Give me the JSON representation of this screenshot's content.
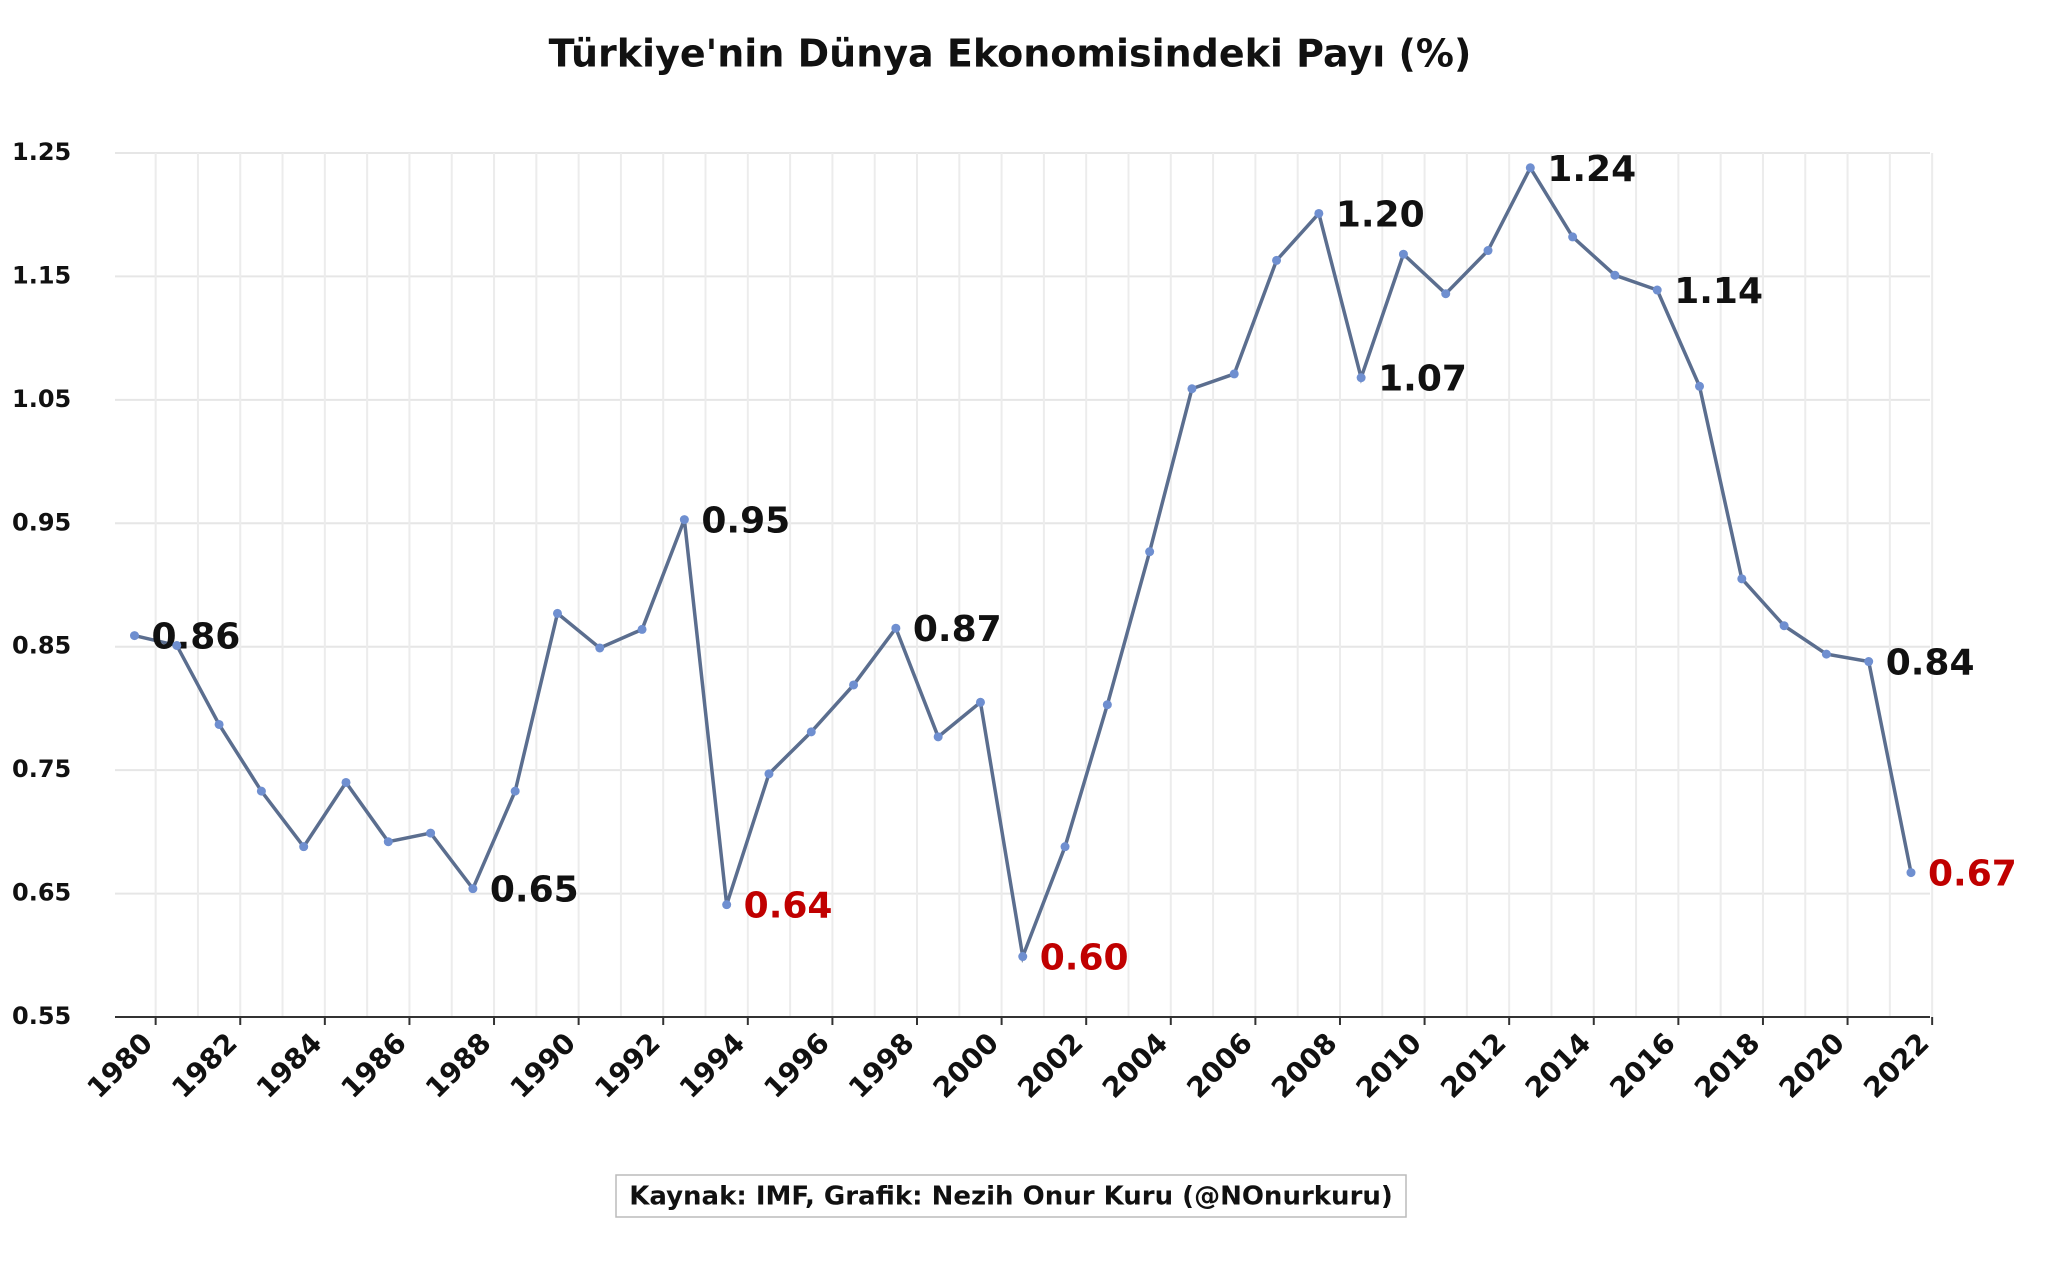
{
  "chart_data": {
    "type": "line",
    "title": "Türkiye'nin Dünya Ekonomisindeki Payı (%)",
    "source": "Kaynak: IMF, Grafik: Nezih Onur Kuru (@NOnurkuru)",
    "categories": [
      "1980",
      null,
      "1982",
      null,
      "1984",
      null,
      "1986",
      null,
      "1988",
      null,
      "1990",
      null,
      "1992",
      null,
      "1994",
      null,
      "1996",
      null,
      "1998",
      null,
      "2000",
      null,
      "2002",
      null,
      "2004",
      null,
      "2006",
      null,
      "2008",
      null,
      "2010",
      null,
      "2012",
      null,
      "2014",
      null,
      "2016",
      null,
      "2018",
      null,
      "2020",
      null,
      "2022"
    ],
    "values": [
      0.859,
      0.851,
      0.787,
      0.733,
      0.688,
      0.74,
      0.692,
      0.699,
      0.654,
      0.733,
      0.877,
      0.849,
      0.864,
      0.953,
      0.641,
      0.747,
      0.781,
      0.819,
      0.865,
      0.777,
      0.805,
      0.599,
      0.688,
      0.803,
      0.927,
      1.059,
      1.071,
      1.163,
      1.201,
      1.068,
      1.168,
      1.136,
      1.171,
      1.238,
      1.182,
      1.151,
      1.139,
      1.061,
      0.905,
      0.867,
      0.844,
      0.838,
      0.667
    ],
    "value_labels": [
      "0.86",
      null,
      null,
      null,
      null,
      null,
      null,
      null,
      "0.65",
      null,
      null,
      null,
      null,
      "0.95",
      "0.64",
      null,
      null,
      null,
      "0.87",
      null,
      null,
      "0.60",
      null,
      null,
      null,
      null,
      null,
      null,
      "1.20",
      "1.07",
      null,
      null,
      null,
      "1.24",
      null,
      null,
      "1.14",
      null,
      null,
      null,
      null,
      "0.84",
      "0.67"
    ],
    "value_label_colors": [
      "#111111",
      null,
      null,
      null,
      null,
      null,
      null,
      null,
      "#111111",
      null,
      null,
      null,
      null,
      "#111111",
      "#c00000",
      null,
      null,
      null,
      "#111111",
      null,
      null,
      "#c00000",
      null,
      null,
      null,
      null,
      null,
      null,
      "#111111",
      "#111111",
      null,
      null,
      null,
      "#111111",
      null,
      null,
      "#111111",
      null,
      null,
      null,
      null,
      "#111111",
      "#c00000"
    ],
    "color": "#5b6e8f",
    "marker_color": "#6f8fd0",
    "ylim": [
      0.55,
      1.25
    ],
    "yticks": [
      0.55,
      0.65,
      0.75,
      0.85,
      0.95,
      1.05,
      1.15,
      1.25
    ],
    "grid": true
  }
}
